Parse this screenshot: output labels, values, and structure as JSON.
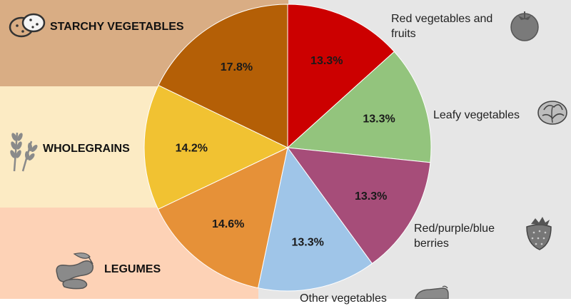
{
  "chart_data": {
    "type": "pie",
    "slices": [
      {
        "label": "Red vegetables and fruits",
        "value": 13.3,
        "value_label": "13.3%",
        "color": "#cc0000"
      },
      {
        "label": "Leafy vegetables",
        "value": 13.3,
        "value_label": "13.3%",
        "color": "#93c47d"
      },
      {
        "label": "Red/purple/blue berries",
        "value": 13.3,
        "value_label": "13.3%",
        "color": "#a64d79"
      },
      {
        "label": "Other vegetables",
        "value": 13.3,
        "value_label": "13.3%",
        "color": "#9fc5e8"
      },
      {
        "label": "LEGUMES",
        "value": 14.6,
        "value_label": "14.6%",
        "color": "#e69138"
      },
      {
        "label": "WHOLEGRAINS",
        "value": 14.2,
        "value_label": "14.2%",
        "color": "#f1c232"
      },
      {
        "label": "STARCHY VEGETABLES",
        "value": 17.8,
        "value_label": "17.8%",
        "color": "#b45f06"
      }
    ]
  },
  "labels": {
    "starchy": "STARCHY VEGETABLES",
    "wholegrains": "WHOLEGRAINS",
    "legumes": "LEGUMES",
    "red_veg_line1": "Red vegetables and",
    "red_veg_line2": "fruits",
    "leafy": "Leafy vegetables",
    "berries_line1": "Red/purple/blue",
    "berries_line2": "berries",
    "other": "Other vegetables"
  },
  "colors": {
    "band_starchy": "#d9ad84",
    "band_wholegrains": "#fcebc4",
    "band_legumes": "#fdd2b6",
    "band_right": "#e6e6e6",
    "icon_gray": "#8a8a8a"
  },
  "icons": [
    "potato-icon",
    "wheat-icon",
    "beans-icon",
    "tomato-icon",
    "cabbage-icon",
    "strawberry-icon",
    "eggplant-icon"
  ]
}
